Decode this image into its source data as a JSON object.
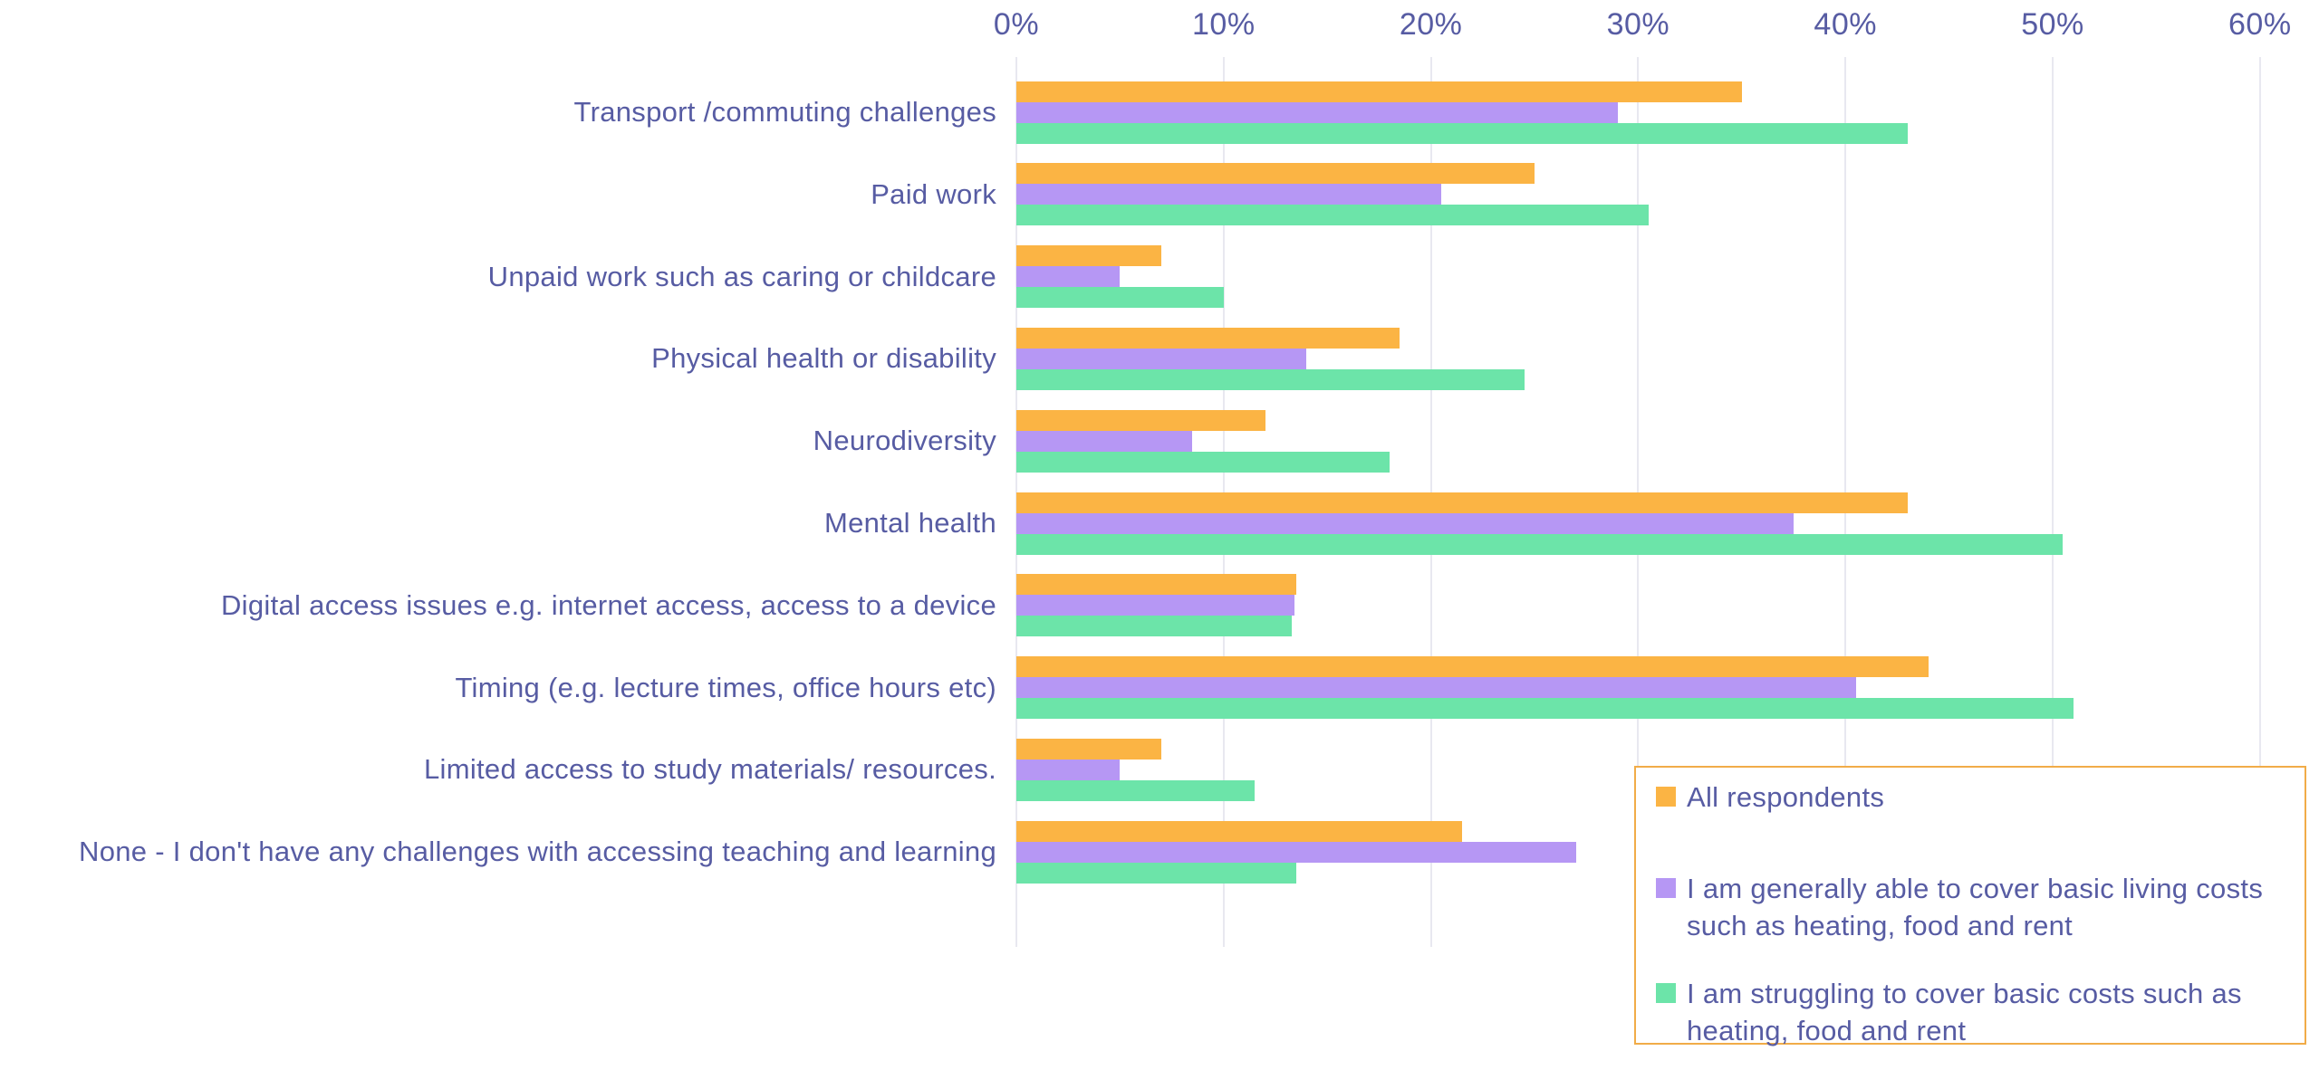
{
  "chart_data": {
    "type": "bar",
    "orientation": "horizontal",
    "categories": [
      "Transport /commuting challenges",
      "Paid work",
      "Unpaid work such as caring or childcare",
      "Physical health or disability",
      "Neurodiversity",
      "Mental health",
      "Digital access issues e.g. internet access, access to a device",
      "Timing (e.g. lecture times, office hours etc)",
      "Limited access to study materials/ resources.",
      "None - I don't have any challenges with accessing teaching and learning"
    ],
    "series": [
      {
        "name": "All respondents",
        "color": "#FBB444",
        "values": [
          35,
          25,
          7,
          18.5,
          12,
          43,
          13.5,
          44,
          7,
          21.5
        ]
      },
      {
        "name": "I am generally able to cover basic living costs such as heating, food and rent",
        "color": "#B697F4",
        "values": [
          29,
          20.5,
          5,
          14,
          8.5,
          37.5,
          13.4,
          40.5,
          5,
          27
        ]
      },
      {
        "name": "I am struggling to cover basic costs such as heating, food and rent",
        "color": "#6CE4A9",
        "values": [
          43,
          30.5,
          10,
          24.5,
          18,
          50.5,
          13.3,
          51,
          11.5,
          13.5
        ]
      }
    ],
    "x_axis": {
      "tick_labels": [
        "0%",
        "10%",
        "20%",
        "30%",
        "40%",
        "50%",
        "60%"
      ],
      "min": 0,
      "max": 60,
      "unit": "%"
    },
    "legend": {
      "position": "bottom-right",
      "border_color": "#F1AC48"
    },
    "grid": "vertical",
    "colors": {
      "text": "#575CA3",
      "gridline": "#E8E8F0",
      "background": "#FFFFFF"
    }
  }
}
